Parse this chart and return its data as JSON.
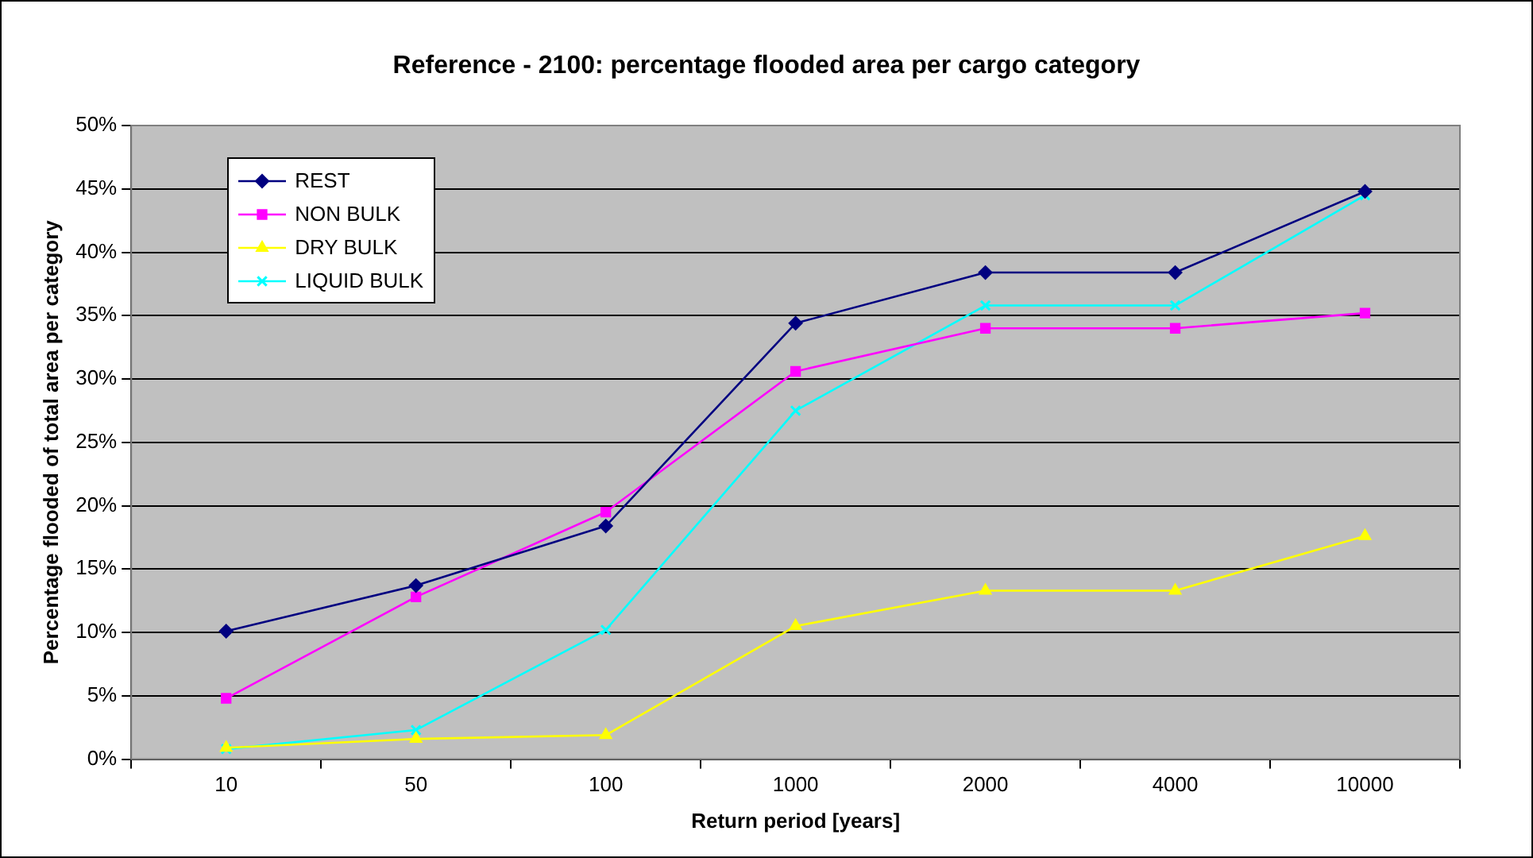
{
  "chart_data": {
    "type": "line",
    "title": "Reference - 2100: percentage flooded area per cargo category",
    "xlabel": "Return period [years]",
    "ylabel": "Percentage flooded of total area per category",
    "categories": [
      "10",
      "50",
      "100",
      "1000",
      "2000",
      "4000",
      "10000"
    ],
    "series": [
      {
        "name": "REST",
        "color": "#000080",
        "marker": "diamond",
        "values": [
          10.1,
          13.7,
          18.4,
          34.4,
          38.4,
          38.4,
          44.8
        ]
      },
      {
        "name": "NON BULK",
        "color": "#ff00ff",
        "marker": "square",
        "values": [
          4.8,
          12.8,
          19.5,
          30.6,
          34.0,
          34.0,
          35.2
        ]
      },
      {
        "name": "DRY BULK",
        "color": "#ffff00",
        "marker": "triangle",
        "values": [
          0.9,
          1.6,
          1.9,
          10.5,
          13.3,
          13.3,
          17.6
        ]
      },
      {
        "name": "LIQUID BULK",
        "color": "#00ffff",
        "marker": "cross",
        "values": [
          0.8,
          2.3,
          10.2,
          27.5,
          35.8,
          35.8,
          44.5
        ]
      }
    ],
    "ylim": [
      0,
      50
    ],
    "yticks": [
      {
        "value": 0,
        "label": "0%"
      },
      {
        "value": 5,
        "label": "5%"
      },
      {
        "value": 10,
        "label": "10%"
      },
      {
        "value": 15,
        "label": "15%"
      },
      {
        "value": 20,
        "label": "20%"
      },
      {
        "value": 25,
        "label": "25%"
      },
      {
        "value": 30,
        "label": "30%"
      },
      {
        "value": 35,
        "label": "35%"
      },
      {
        "value": 40,
        "label": "40%"
      },
      {
        "value": 45,
        "label": "45%"
      },
      {
        "value": 50,
        "label": "50%"
      }
    ],
    "grid": "y",
    "legend": "top left",
    "line_style": "solid"
  }
}
